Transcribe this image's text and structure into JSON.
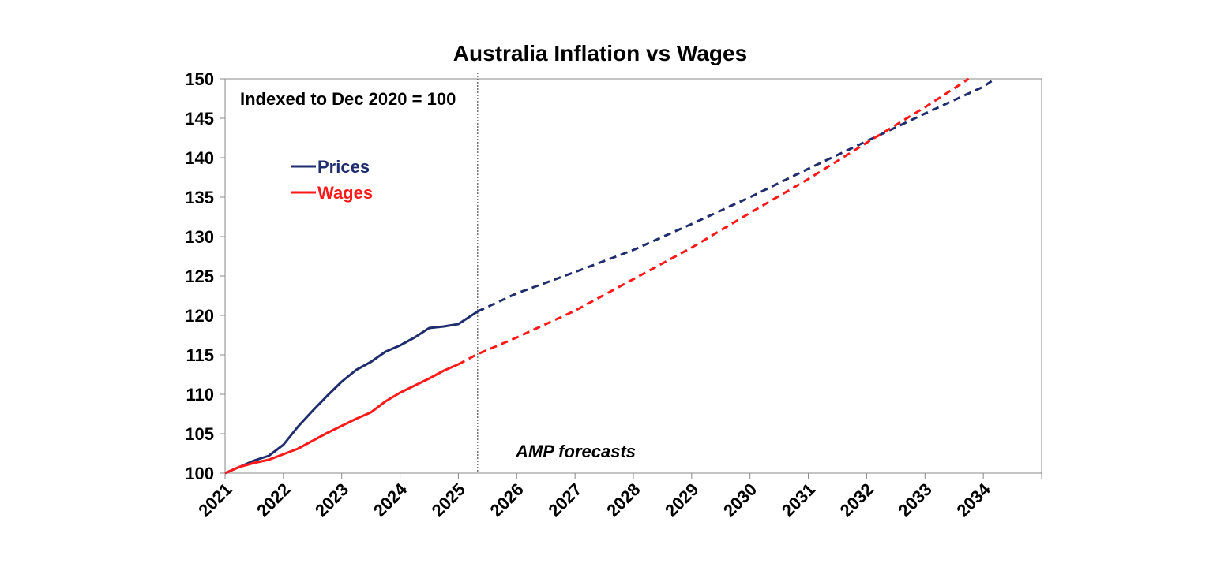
{
  "chart_data": {
    "type": "line",
    "title": "Australia Inflation vs Wages",
    "annotation": "Indexed to Dec 2020 = 100",
    "forecast_label": "AMP forecasts",
    "forecast_start": 2025.33,
    "xlim": [
      2021,
      2035
    ],
    "ylim": [
      100,
      150
    ],
    "y_ticks": [
      100,
      105,
      110,
      115,
      120,
      125,
      130,
      135,
      140,
      145,
      150
    ],
    "x_ticks": [
      "2021",
      "2022",
      "2023",
      "2024",
      "2025",
      "2026",
      "2027",
      "2028",
      "2029",
      "2030",
      "2031",
      "2032",
      "2033",
      "2034"
    ],
    "grid": false,
    "legend_position": "upper-left",
    "series": [
      {
        "name": "Prices",
        "color": "#1f2d6e",
        "actual": {
          "x": [
            2021.0,
            2021.25,
            2021.5,
            2021.75,
            2022.0,
            2022.25,
            2022.5,
            2022.75,
            2023.0,
            2023.25,
            2023.5,
            2023.75,
            2024.0,
            2024.25,
            2024.5,
            2024.75,
            2025.0,
            2025.33
          ],
          "y": [
            100.0,
            100.8,
            101.6,
            102.2,
            103.6,
            105.9,
            107.9,
            109.8,
            111.6,
            113.1,
            114.1,
            115.4,
            116.2,
            117.2,
            118.4,
            118.6,
            118.9,
            120.5
          ]
        },
        "forecast": {
          "x": [
            2025.33,
            2026.0,
            2027.0,
            2028.0,
            2029.0,
            2030.0,
            2031.0,
            2032.0,
            2033.0,
            2034.0,
            2034.2
          ],
          "y": [
            120.5,
            122.8,
            125.5,
            128.3,
            131.6,
            135.0,
            138.6,
            142.1,
            145.6,
            149.0,
            150.0
          ]
        }
      },
      {
        "name": "Wages",
        "color": "#ff1a1a",
        "actual": {
          "x": [
            2021.0,
            2021.25,
            2021.5,
            2021.75,
            2022.0,
            2022.25,
            2022.5,
            2022.75,
            2023.0,
            2023.25,
            2023.5,
            2023.75,
            2024.0,
            2024.25,
            2024.5,
            2024.75,
            2025.0
          ],
          "y": [
            100.0,
            100.8,
            101.3,
            101.7,
            102.4,
            103.1,
            104.1,
            105.1,
            106.0,
            106.9,
            107.7,
            109.1,
            110.2,
            111.1,
            112.0,
            113.0,
            113.8
          ]
        },
        "forecast": {
          "x": [
            2025.0,
            2025.33,
            2026.0,
            2027.0,
            2028.0,
            2029.0,
            2030.0,
            2031.0,
            2032.0,
            2033.0,
            2033.75
          ],
          "y": [
            113.8,
            115.1,
            117.2,
            120.6,
            124.6,
            128.6,
            133.0,
            137.3,
            141.9,
            146.4,
            150.0
          ]
        }
      }
    ]
  }
}
